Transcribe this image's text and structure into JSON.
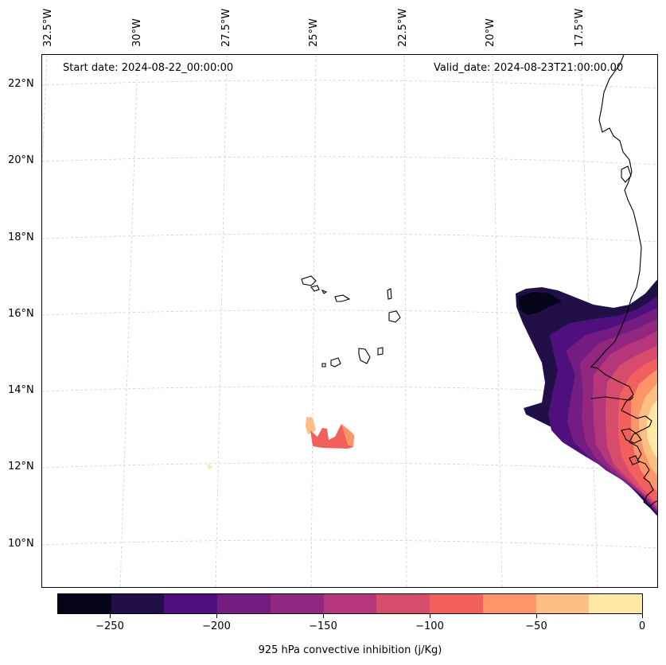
{
  "map": {
    "start_date": "Start date: 2024-08-22_00:00:00",
    "valid_date": "Valid_date: 2024-08-23T21:00:00.00",
    "lon_labels": [
      "32.5°W",
      "30°W",
      "27.5°W",
      "25°W",
      "22.5°W",
      "20°W",
      "17.5°W"
    ],
    "lat_labels": [
      "22°N",
      "20°N",
      "18°N",
      "16°N",
      "14°N",
      "12°N",
      "10°N"
    ]
  },
  "colorbar": {
    "title": "925 hPa convective inhibition (j/Kg)",
    "tick_labels": [
      "−250",
      "−200",
      "−150",
      "−100",
      "−50",
      "0"
    ],
    "colors": [
      "#050418",
      "#211047",
      "#4f0f7c",
      "#731c81",
      "#91277e",
      "#b5367a",
      "#d74b6c",
      "#f1605d",
      "#fd9568",
      "#febf84",
      "#fde9a4"
    ]
  },
  "colors": {
    "grid": "#cccccc",
    "coast": "#000000"
  }
}
